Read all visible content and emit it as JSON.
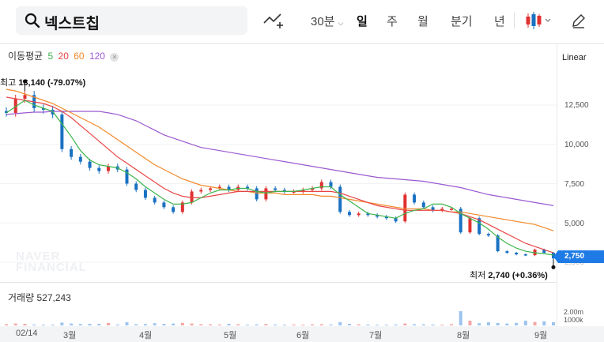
{
  "search": {
    "query": "넥스트칩"
  },
  "toolbar": {
    "interval_label": "30분",
    "periods": [
      "일",
      "주",
      "월",
      "분기",
      "년"
    ],
    "selected_period": "일",
    "chart_type_icon": "candlestick-icon",
    "edit_icon": "pencil-icon"
  },
  "ma_legend": {
    "title": "이동평균",
    "periods": [
      "5",
      "20",
      "60",
      "120"
    ],
    "colors": [
      "#3cb44b",
      "#e84545",
      "#f0892a",
      "#9b59d0"
    ]
  },
  "scale_mode": "Linear",
  "current_price_tag": "2,750",
  "annotations": {
    "high": {
      "label": "최고",
      "value": "13,140 (-79.07%)"
    },
    "low": {
      "label": "최저",
      "value": "2,740 (+0.36%)"
    }
  },
  "watermark": [
    "NAVER",
    "FINANCIAL"
  ],
  "volume": {
    "label": "거래량",
    "value": "527,243",
    "ticks": [
      "2.00m",
      "1000k"
    ]
  },
  "x_axis": [
    "02/14",
    "3월",
    "4월",
    "5월",
    "6월",
    "7월",
    "8월",
    "9월"
  ],
  "colors": {
    "up": "#e03131",
    "down": "#1971c2",
    "accent": "#1e7be6"
  },
  "chart_data": {
    "type": "candlestick",
    "y_ticks": [
      12500,
      10000,
      7500,
      5000,
      2500
    ],
    "ylim": [
      2000,
      14000
    ],
    "x_ticks": [
      "02/14",
      "3월",
      "4월",
      "5월",
      "6월",
      "7월",
      "8월",
      "9월"
    ],
    "price_series": [
      {
        "m": "02/14",
        "close": 12000
      },
      {
        "m": "02/14",
        "close": 12900
      },
      {
        "m": "02/14",
        "close": 13140
      },
      {
        "m": "02/14",
        "close": 12300
      },
      {
        "m": "2월",
        "close": 12200
      },
      {
        "m": "2월",
        "close": 11900
      },
      {
        "m": "2월",
        "close": 9700
      },
      {
        "m": "2월",
        "close": 9200
      },
      {
        "m": "3월",
        "close": 8900
      },
      {
        "m": "3월",
        "close": 8500
      },
      {
        "m": "3월",
        "close": 8300
      },
      {
        "m": "3월",
        "close": 8600
      },
      {
        "m": "3월",
        "close": 8400
      },
      {
        "m": "3월",
        "close": 7500
      },
      {
        "m": "3월",
        "close": 7100
      },
      {
        "m": "3월",
        "close": 6600
      },
      {
        "m": "4월",
        "close": 6300
      },
      {
        "m": "4월",
        "close": 6000
      },
      {
        "m": "4월",
        "close": 5700
      },
      {
        "m": "4월",
        "close": 6300
      },
      {
        "m": "4월",
        "close": 7000
      },
      {
        "m": "4월",
        "close": 7100
      },
      {
        "m": "4월",
        "close": 7200
      },
      {
        "m": "4월",
        "close": 7300
      },
      {
        "m": "5월",
        "close": 7100
      },
      {
        "m": "5월",
        "close": 7300
      },
      {
        "m": "5월",
        "close": 7200
      },
      {
        "m": "5월",
        "close": 6500
      },
      {
        "m": "5월",
        "close": 7200
      },
      {
        "m": "5월",
        "close": 7100
      },
      {
        "m": "5월",
        "close": 7000
      },
      {
        "m": "5월",
        "close": 7000
      },
      {
        "m": "6월",
        "close": 7100
      },
      {
        "m": "6월",
        "close": 7200
      },
      {
        "m": "6월",
        "close": 7600
      },
      {
        "m": "6월",
        "close": 7300
      },
      {
        "m": "6월",
        "close": 5700
      },
      {
        "m": "6월",
        "close": 5500
      },
      {
        "m": "6월",
        "close": 5600
      },
      {
        "m": "6월",
        "close": 5500
      },
      {
        "m": "7월",
        "close": 5400
      },
      {
        "m": "7월",
        "close": 5300
      },
      {
        "m": "7월",
        "close": 5100
      },
      {
        "m": "7월",
        "close": 6800
      },
      {
        "m": "7월",
        "close": 6300
      },
      {
        "m": "7월",
        "close": 6000
      },
      {
        "m": "7월",
        "close": 5800
      },
      {
        "m": "7월",
        "close": 5900
      },
      {
        "m": "8월",
        "close": 5900
      },
      {
        "m": "8월",
        "close": 4400
      },
      {
        "m": "8월",
        "close": 5300
      },
      {
        "m": "8월",
        "close": 4300
      },
      {
        "m": "8월",
        "close": 4200
      },
      {
        "m": "8월",
        "close": 3200
      },
      {
        "m": "8월",
        "close": 3100
      },
      {
        "m": "8월",
        "close": 3000
      },
      {
        "m": "9월",
        "close": 2950
      },
      {
        "m": "9월",
        "close": 3300
      },
      {
        "m": "9월",
        "close": 3100
      },
      {
        "m": "9월",
        "close": 2740
      }
    ],
    "ma5": [
      12000,
      12400,
      12800,
      12500,
      12300,
      12100,
      11300,
      10500,
      9600,
      9000,
      8700,
      8600,
      8500,
      8200,
      7800,
      7300,
      6900,
      6500,
      6200,
      6200,
      6300,
      6600,
      6900,
      7100,
      7100,
      7200,
      7200,
      7000,
      6900,
      7000,
      7000,
      7000,
      7100,
      7200,
      7300,
      7300,
      6800,
      6400,
      6000,
      5600,
      5500,
      5400,
      5300,
      5600,
      5800,
      5900,
      6200,
      6200,
      6000,
      5600,
      5300,
      5000,
      4600,
      4100,
      3700,
      3400,
      3200,
      3100,
      3050,
      2950
    ],
    "ma20": [
      13000,
      12900,
      12800,
      12700,
      12600,
      12400,
      12100,
      11700,
      11200,
      10700,
      10200,
      9700,
      9200,
      8800,
      8400,
      8000,
      7600,
      7200,
      6900,
      6700,
      6600,
      6600,
      6700,
      6800,
      6900,
      7000,
      7000,
      7000,
      7000,
      7000,
      7000,
      7000,
      7000,
      7000,
      7000,
      7000,
      6900,
      6700,
      6500,
      6300,
      6100,
      6000,
      5900,
      5800,
      5800,
      5800,
      5800,
      5800,
      5700,
      5600,
      5400,
      5200,
      4900,
      4600,
      4300,
      4000,
      3700,
      3500,
      3300,
      3100
    ],
    "ma60": [
      13500,
      13400,
      13200,
      13000,
      12800,
      12600,
      12300,
      12000,
      11700,
      11400,
      11100,
      10700,
      10300,
      9900,
      9500,
      9100,
      8700,
      8400,
      8100,
      7800,
      7600,
      7400,
      7300,
      7200,
      7100,
      7000,
      7000,
      6900,
      6900,
      6900,
      6800,
      6800,
      6800,
      6800,
      6700,
      6700,
      6600,
      6500,
      6400,
      6300,
      6200,
      6100,
      6000,
      5900,
      5900,
      5900,
      5800,
      5800,
      5700,
      5700,
      5600,
      5500,
      5400,
      5300,
      5200,
      5100,
      5000,
      4900,
      4700,
      4500
    ],
    "ma120": [
      11900,
      11950,
      12000,
      12050,
      12050,
      12100,
      12100,
      12100,
      12100,
      12100,
      12100,
      12000,
      11900,
      11700,
      11500,
      11200,
      10900,
      10600,
      10400,
      10200,
      10000,
      9800,
      9700,
      9600,
      9500,
      9400,
      9300,
      9200,
      9100,
      9000,
      8900,
      8800,
      8700,
      8600,
      8500,
      8400,
      8300,
      8200,
      8100,
      8000,
      7900,
      7850,
      7800,
      7750,
      7700,
      7650,
      7550,
      7450,
      7350,
      7250,
      7100,
      6950,
      6800,
      6700,
      6600,
      6500,
      6400,
      6300,
      6200,
      6100
    ],
    "volume": [
      0.08,
      0.12,
      0.1,
      0.06,
      0.04,
      0.05,
      0.18,
      0.12,
      0.09,
      0.1,
      0.1,
      0.15,
      0.06,
      0.2,
      0.08,
      0.09,
      0.14,
      0.1,
      0.12,
      0.16,
      0.12,
      0.08,
      0.07,
      0.06,
      0.1,
      0.08,
      0.05,
      0.07,
      0.09,
      0.06,
      0.05,
      0.06,
      0.04,
      0.07,
      0.08,
      0.06,
      0.2,
      0.1,
      0.07,
      0.06,
      0.05,
      0.05,
      0.06,
      0.12,
      0.08,
      0.07,
      0.06,
      0.05,
      0.08,
      0.9,
      0.3,
      0.14,
      0.2,
      0.15,
      0.12,
      0.16,
      0.3,
      0.22,
      0.26,
      0.2
    ]
  }
}
